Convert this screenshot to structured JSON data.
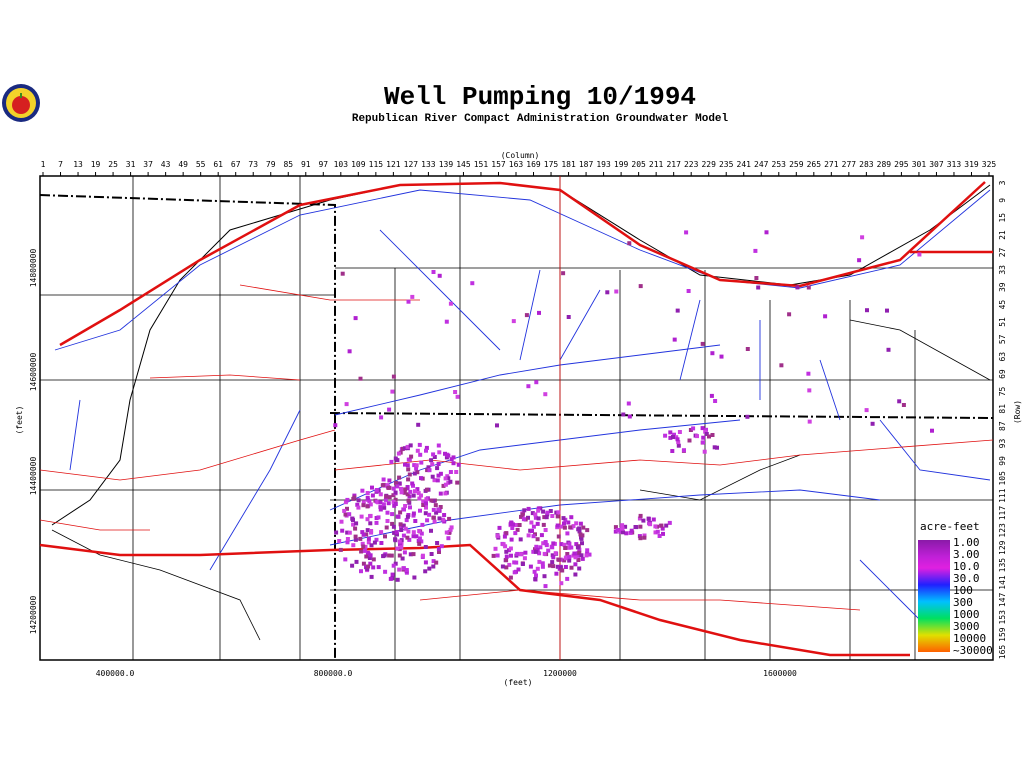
{
  "header": {
    "title": "Well Pumping 10/1994",
    "subtitle": "Republican River Compact Administration Groundwater Model"
  },
  "axes": {
    "column_label": "(Column)",
    "row_label": "(Row)",
    "x_feet_label": "(feet)",
    "y_feet_label": "(feet)",
    "column_ticks": [
      1,
      7,
      13,
      19,
      25,
      31,
      37,
      43,
      49,
      55,
      61,
      67,
      73,
      79,
      85,
      91,
      97,
      103,
      109,
      115,
      121,
      127,
      133,
      139,
      145,
      151,
      157,
      163,
      169,
      175,
      181,
      187,
      193,
      199,
      205,
      211,
      217,
      223,
      229,
      235,
      241,
      247,
      253,
      259,
      265,
      271,
      277,
      283,
      289,
      295,
      301,
      307,
      313,
      319,
      325
    ],
    "row_ticks": [
      3,
      9,
      15,
      21,
      27,
      33,
      39,
      45,
      51,
      57,
      63,
      69,
      75,
      81,
      87,
      93,
      99,
      105,
      111,
      117,
      123,
      129,
      135,
      141,
      147,
      153,
      159,
      165
    ],
    "x_feet_ticks": [
      "400000.0",
      "800000.0",
      "1200000",
      "1600000"
    ],
    "y_feet_ticks": [
      "14800000",
      "14600000",
      "14400000",
      "14200000"
    ]
  },
  "legend": {
    "title": "acre-feet",
    "labels": [
      "1.00",
      "3.00",
      "10.0",
      "30.0",
      "100",
      "300",
      "1000",
      "3000",
      "10000",
      "~30000"
    ]
  }
}
